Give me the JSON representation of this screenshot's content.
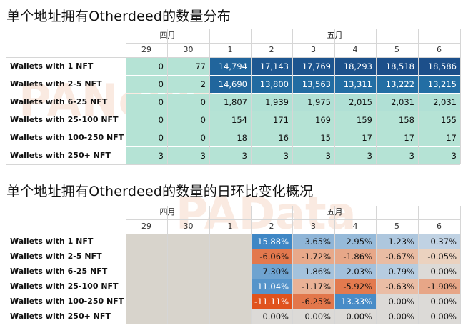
{
  "chart_data": [
    {
      "type": "table",
      "title": "单个地址拥有Otherdeed的数量分布",
      "month_groups": [
        {
          "label": "四月",
          "span": [
            0,
            2
          ]
        },
        {
          "label": "五月",
          "span": [
            2,
            8
          ]
        }
      ],
      "columns": [
        "29",
        "30",
        "1",
        "2",
        "3",
        "4",
        "5",
        "6"
      ],
      "rows": [
        {
          "label": "Wallets with 1 NFT",
          "values": [
            "0",
            "77",
            "14,794",
            "17,143",
            "17,769",
            "18,293",
            "18,518",
            "18,586"
          ]
        },
        {
          "label": "Wallets with 2-5 NFT",
          "values": [
            "0",
            "2",
            "14,690",
            "13,800",
            "13,563",
            "13,311",
            "13,222",
            "13,215"
          ]
        },
        {
          "label": "Wallets with 6-25 NFT",
          "values": [
            "0",
            "0",
            "1,807",
            "1,939",
            "1,975",
            "2,015",
            "2,031",
            "2,031"
          ]
        },
        {
          "label": "Wallets with 25-100 NFT",
          "values": [
            "0",
            "0",
            "154",
            "171",
            "169",
            "159",
            "158",
            "155"
          ]
        },
        {
          "label": "Wallets with 100-250 NFT",
          "values": [
            "0",
            "0",
            "18",
            "16",
            "15",
            "17",
            "17",
            "17"
          ]
        },
        {
          "label": "Wallets with 250+ NFT",
          "values": [
            "3",
            "3",
            "3",
            "3",
            "3",
            "3",
            "3",
            "3"
          ]
        }
      ],
      "colors": {
        "low": "#b5e3d5",
        "mid": "#2a8fbf",
        "high": "#1c4f8a"
      }
    },
    {
      "type": "table",
      "title": "单个地址拥有Otherdeed的数量的日环比变化概况",
      "month_groups": [
        {
          "label": "四月",
          "span": [
            0,
            2
          ]
        },
        {
          "label": "五月",
          "span": [
            2,
            8
          ]
        }
      ],
      "columns": [
        "29",
        "30",
        "1",
        "2",
        "3",
        "4",
        "5",
        "6"
      ],
      "rows": [
        {
          "label": "Wallets with 1 NFT",
          "values": [
            "",
            "",
            "",
            "15.88%",
            "3.65%",
            "2.95%",
            "1.23%",
            "0.37%"
          ]
        },
        {
          "label": "Wallets with 2-5 NFT",
          "values": [
            "",
            "",
            "",
            "-6.06%",
            "-1.72%",
            "-1.86%",
            "-0.67%",
            "-0.05%"
          ]
        },
        {
          "label": "Wallets with 6-25 NFT",
          "values": [
            "",
            "",
            "",
            "7.30%",
            "1.86%",
            "2.03%",
            "0.79%",
            "0.00%"
          ]
        },
        {
          "label": "Wallets with 25-100 NFT",
          "values": [
            "",
            "",
            "",
            "11.04%",
            "-1.17%",
            "-5.92%",
            "-0.63%",
            "-1.90%"
          ]
        },
        {
          "label": "Wallets with 100-250 NFT",
          "values": [
            "",
            "",
            "",
            "-11.11%",
            "-6.25%",
            "13.33%",
            "0.00%",
            "0.00%"
          ]
        },
        {
          "label": "Wallets with 250+ NFT",
          "values": [
            "",
            "",
            "",
            "0.00%",
            "0.00%",
            "0.00%",
            "0.00%",
            "0.00%"
          ]
        }
      ],
      "colors": {
        "empty": "#d8d4cc",
        "zero": "#dcdad7",
        "pos_strong": "#3f87c5",
        "neg_strong": "#e0531d"
      }
    }
  ],
  "watermarks": [
    "PANews",
    "PAData"
  ]
}
